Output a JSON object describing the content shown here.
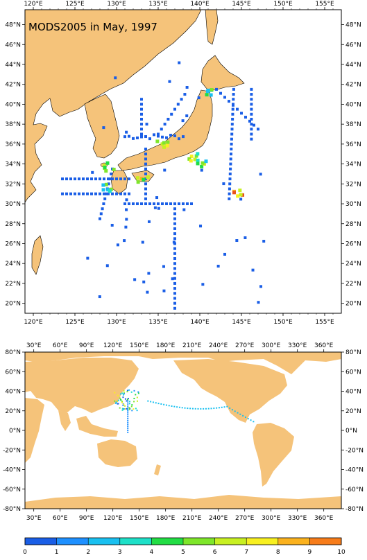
{
  "title": "MODS2005 in May, 1997",
  "top_map": {
    "lon_labels": [
      "120°E",
      "125°E",
      "130°E",
      "135°E",
      "140°E",
      "145°E",
      "150°E",
      "155°E"
    ],
    "lat_labels": [
      "48°N",
      "46°N",
      "44°N",
      "42°N",
      "40°N",
      "38°N",
      "36°N",
      "34°N",
      "32°N",
      "30°N",
      "28°N",
      "26°N",
      "24°N",
      "22°N",
      "20°N"
    ]
  },
  "bottom_map": {
    "lon_labels": [
      "30°E",
      "60°E",
      "90°E",
      "120°E",
      "150°E",
      "180°E",
      "210°E",
      "240°E",
      "270°E",
      "300°E",
      "330°E",
      "360°E"
    ],
    "lat_labels": [
      "80°N",
      "60°N",
      "40°N",
      "20°N",
      "0°N",
      "-20°N",
      "-40°N",
      "-60°N",
      "-80°N"
    ]
  },
  "colorbar": {
    "labels": [
      "0",
      "1",
      "2",
      "3",
      "4",
      "5",
      "6",
      "7",
      "8",
      "9",
      "10"
    ],
    "colors": [
      "#1a5ee6",
      "#1e90ff",
      "#19c0f0",
      "#1ee0c8",
      "#22dd44",
      "#7ee62a",
      "#c8f022",
      "#f8f020",
      "#fbb21e",
      "#f77c1a",
      "#e8501a"
    ]
  },
  "colors": {
    "land": "#f5c37a",
    "ocean": "#ffffff",
    "obs_low": "#1e6cf0"
  }
}
